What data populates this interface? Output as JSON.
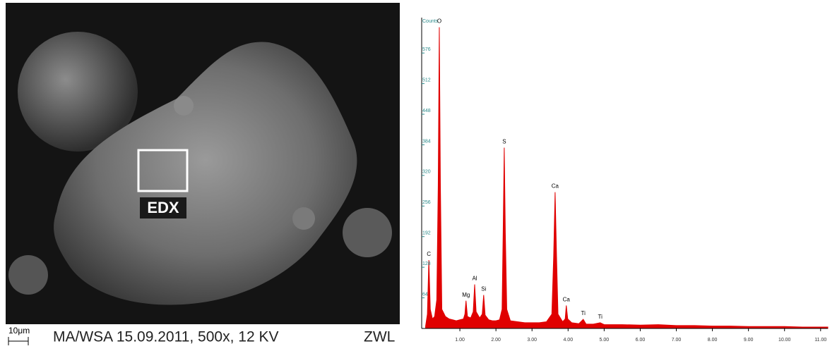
{
  "image": {
    "region_label": "EDX",
    "scale": "10μm",
    "caption": "MA/WSA 15.09.2011,  500x, 12 KV",
    "operator": "ZWL"
  },
  "chart_data": {
    "type": "area",
    "y_label": "Counts",
    "color": "#e00000",
    "x": [
      0.05,
      0.1,
      0.14,
      0.18,
      0.24,
      0.3,
      0.36,
      0.4,
      0.43,
      0.46,
      0.5,
      0.6,
      0.7,
      0.8,
      0.9,
      1.0,
      1.1,
      1.14,
      1.17,
      1.21,
      1.3,
      1.37,
      1.41,
      1.45,
      1.55,
      1.62,
      1.66,
      1.7,
      1.8,
      1.9,
      2.0,
      2.1,
      2.17,
      2.2,
      2.23,
      2.26,
      2.3,
      2.4,
      2.6,
      2.8,
      3.0,
      3.2,
      3.4,
      3.55,
      3.6,
      3.64,
      3.68,
      3.72,
      3.85,
      3.92,
      3.95,
      3.99,
      4.1,
      4.3,
      4.42,
      4.5,
      4.7,
      4.89,
      5.0,
      5.5,
      6.0,
      6.5,
      7.0,
      7.5,
      8.0,
      8.5,
      9.0,
      9.5,
      10.0,
      10.5,
      11.0,
      11.2
    ],
    "values": [
      5,
      30,
      143,
      40,
      20,
      25,
      60,
      300,
      630,
      300,
      40,
      25,
      20,
      18,
      16,
      18,
      20,
      30,
      58,
      25,
      22,
      35,
      92,
      35,
      22,
      30,
      70,
      28,
      18,
      16,
      16,
      18,
      40,
      200,
      378,
      200,
      40,
      16,
      14,
      12,
      12,
      12,
      14,
      30,
      150,
      285,
      150,
      30,
      14,
      20,
      48,
      20,
      12,
      10,
      19,
      9,
      9,
      12,
      8,
      8,
      7,
      8,
      6,
      6,
      5,
      5,
      4,
      4,
      4,
      3,
      3,
      3
    ],
    "xlim": [
      0,
      11.2
    ],
    "ylim": [
      0,
      650
    ],
    "xticks": [
      {
        "value": 1,
        "label": "1.00"
      },
      {
        "value": 2,
        "label": "2.00"
      },
      {
        "value": 3,
        "label": "3.00"
      },
      {
        "value": 4,
        "label": "4.00"
      },
      {
        "value": 5,
        "label": "5.00"
      },
      {
        "value": 6,
        "label": "6.00"
      },
      {
        "value": 7,
        "label": "7.00"
      },
      {
        "value": 8,
        "label": "8.00"
      },
      {
        "value": 9,
        "label": "9.00"
      },
      {
        "value": 10,
        "label": "10.00"
      },
      {
        "value": 11,
        "label": "11.00"
      }
    ],
    "yticks": [
      64,
      128,
      192,
      256,
      320,
      384,
      448,
      512,
      576
    ],
    "annotations": [
      {
        "text": "C",
        "x": 0.14,
        "y": 143
      },
      {
        "text": "O",
        "x": 0.43,
        "y": 630
      },
      {
        "text": "Mg",
        "x": 1.17,
        "y": 58
      },
      {
        "text": "Al",
        "x": 1.41,
        "y": 92
      },
      {
        "text": "Si",
        "x": 1.66,
        "y": 70
      },
      {
        "text": "S",
        "x": 2.23,
        "y": 378
      },
      {
        "text": "Ca",
        "x": 3.64,
        "y": 285
      },
      {
        "text": "Ca",
        "x": 3.95,
        "y": 48
      },
      {
        "text": "Ti",
        "x": 4.42,
        "y": 19
      },
      {
        "text": "Ti",
        "x": 4.89,
        "y": 12
      }
    ]
  }
}
